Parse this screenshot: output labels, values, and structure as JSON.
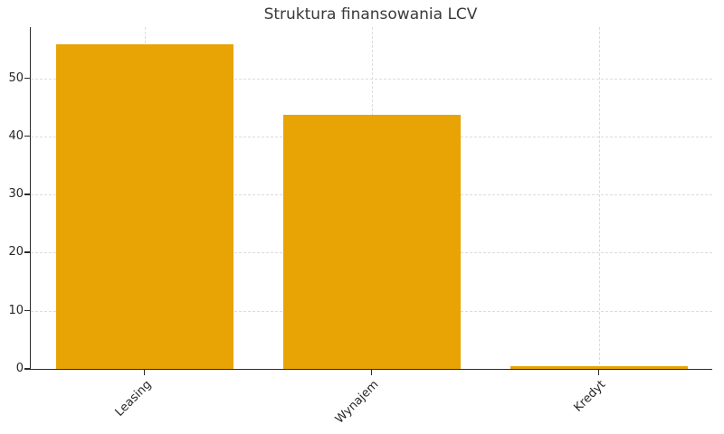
{
  "chart_data": {
    "type": "bar",
    "title": "Struktura finansowania LCV",
    "categories": [
      "Leasing",
      "Wynajem",
      "Kredyt"
    ],
    "values": [
      55.8,
      43.7,
      0.5
    ],
    "xlabel": "",
    "ylabel": "",
    "ylim": [
      0,
      58.8
    ],
    "yticks": [
      0,
      10,
      20,
      30,
      40,
      50
    ],
    "ytick_labels": [
      "0",
      "10",
      "20",
      "30",
      "40",
      "50"
    ],
    "grid": {
      "horizontal": true,
      "vertical": true,
      "style": "dashed"
    },
    "legend_position": "none",
    "x_label_rotation_deg": 45,
    "colors": {
      "bar": "#E8A305",
      "grid": "#DCDCDC",
      "spine": "#2B2B2B",
      "tick_label": "#262626",
      "title": "#3A3A3A",
      "background": "#FFFFFF"
    }
  }
}
